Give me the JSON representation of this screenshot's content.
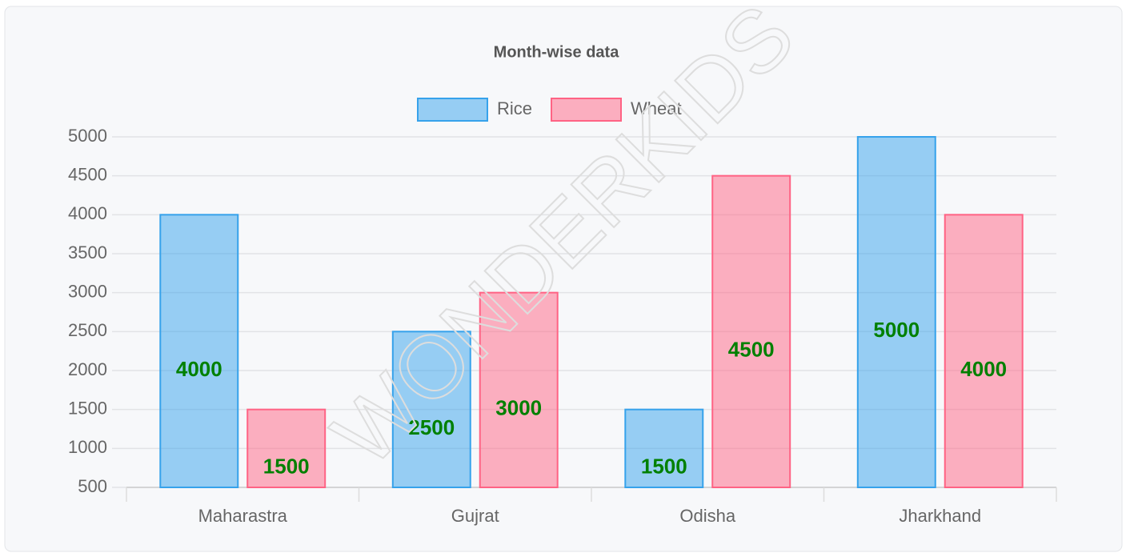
{
  "chart_data": {
    "type": "bar",
    "title": "Month-wise data",
    "categories": [
      "Maharastra",
      "Gujrat",
      "Odisha",
      "Jharkhand"
    ],
    "series": [
      {
        "name": "Rice",
        "color": "#36a2eb",
        "values": [
          4000,
          2500,
          1500,
          5000
        ]
      },
      {
        "name": "Wheat",
        "color": "#ff6384",
        "values": [
          1500,
          3000,
          4500,
          4000
        ]
      }
    ],
    "ylim": [
      500,
      5000
    ],
    "yticks": [
      500,
      1000,
      1500,
      2000,
      2500,
      3000,
      3500,
      4000,
      4500,
      5000
    ],
    "grid": true,
    "legend": "top",
    "watermark": "WONDERKIDS"
  }
}
